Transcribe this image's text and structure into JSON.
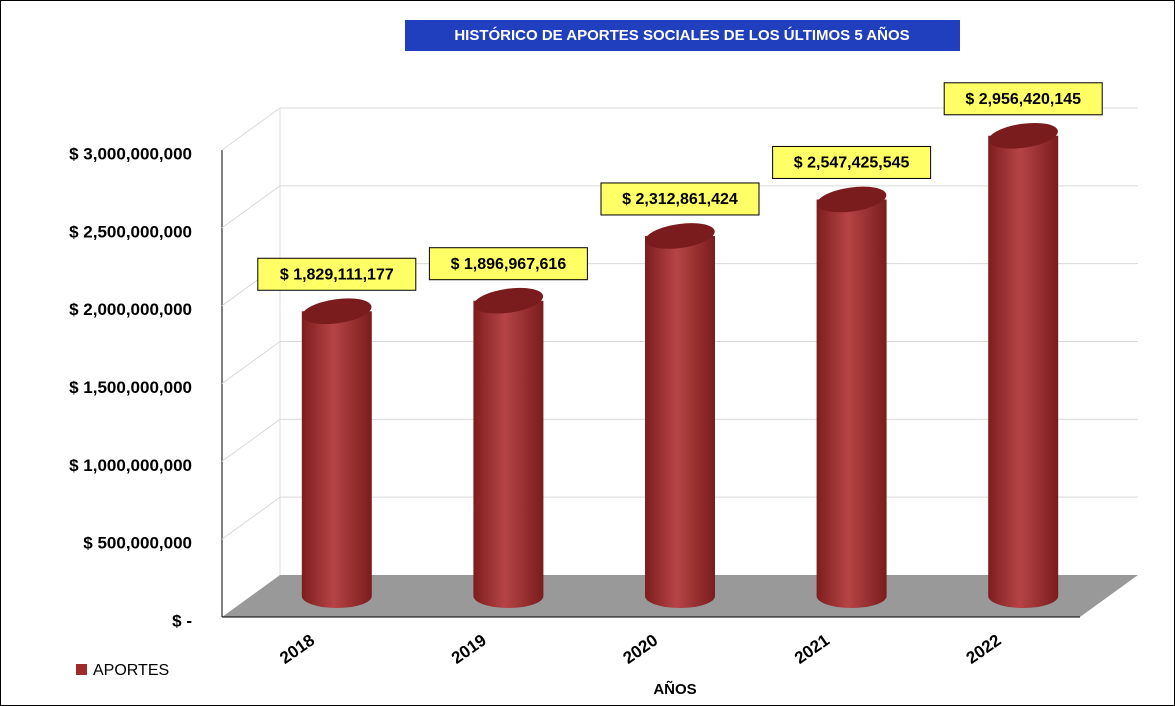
{
  "chart_data": {
    "type": "bar3d",
    "title": "HISTÓRICO DE APORTES SOCIALES  DE LOS  ÚLTIMOS 5 AÑOS",
    "x_label": "AÑOS",
    "categories": [
      "2018",
      "2019",
      "2020",
      "2021",
      "2022"
    ],
    "series": [
      {
        "name": "APORTES",
        "color": "#9e2a2b",
        "values": [
          1829111177,
          1896967616,
          2312861424,
          2547425545,
          2956420145
        ],
        "value_labels": [
          "$ 1,829,111,177",
          "$ 1,896,967,616",
          "$ 2,312,861,424",
          "$ 2,547,425,545",
          "$ 2,956,420,145"
        ]
      }
    ],
    "ylim": [
      0,
      3000000000
    ],
    "yticks": [
      {
        "value": 0,
        "label": "$ -"
      },
      {
        "value": 500000000,
        "label": "$ 500,000,000"
      },
      {
        "value": 1000000000,
        "label": "$ 1,000,000,000"
      },
      {
        "value": 1500000000,
        "label": "$ 1,500,000,000"
      },
      {
        "value": 2000000000,
        "label": "$ 2,000,000,000"
      },
      {
        "value": 2500000000,
        "label": "$ 2,500,000,000"
      },
      {
        "value": 3000000000,
        "label": "$ 3,000,000,000"
      }
    ],
    "grid": true,
    "legend": "bottom-left"
  }
}
